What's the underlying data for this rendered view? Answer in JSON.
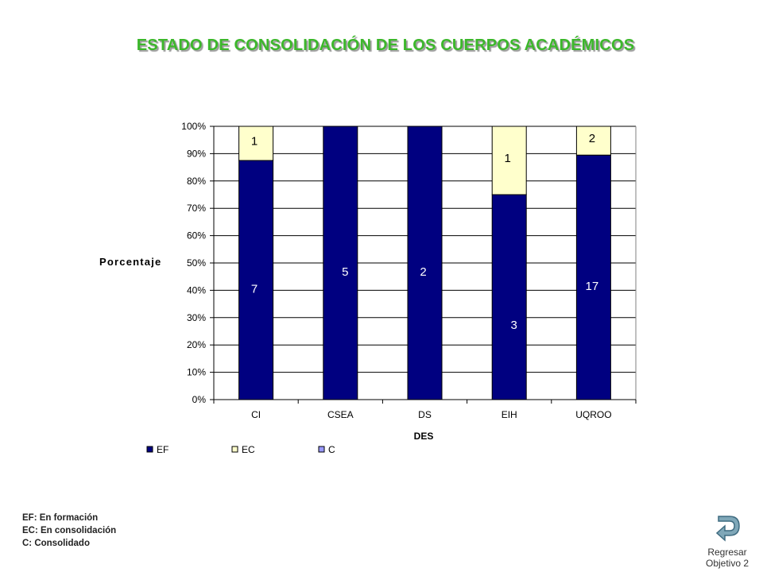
{
  "title": "ESTADO DE CONSOLIDACIÓN DE LOS CUERPOS ACADÉMICOS",
  "chart_data": {
    "type": "bar",
    "stacked": "percent",
    "categories": [
      "CI",
      "CSEA",
      "DS",
      "EIH",
      "UQROO"
    ],
    "series": [
      {
        "name": "EF",
        "values": [
          7,
          5,
          2,
          3,
          17
        ],
        "color": "#000080"
      },
      {
        "name": "EC",
        "values": [
          1,
          0,
          0,
          1,
          2
        ],
        "color": "#ffffcc"
      },
      {
        "name": "C",
        "values": [
          0,
          0,
          0,
          0,
          0
        ],
        "color": "#9999ff"
      }
    ],
    "xlabel": "DES",
    "ylabel": "Porcentaje",
    "ylim": [
      0,
      100
    ],
    "yticks": [
      "0%",
      "10%",
      "20%",
      "30%",
      "40%",
      "50%",
      "60%",
      "70%",
      "80%",
      "90%",
      "100%"
    ],
    "grid": true,
    "legend_position": "bottom"
  },
  "footnotes": [
    "EF: En formación",
    "EC: En consolidación",
    "C: Consolidado"
  ],
  "back_button": {
    "line1": "Regresar",
    "line2": "Objetivo 2",
    "icon": "curved-return-arrow-icon"
  }
}
